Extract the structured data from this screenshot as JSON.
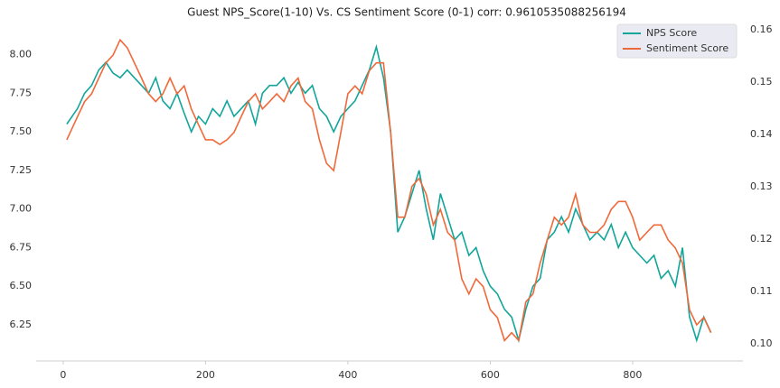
{
  "chart_data": {
    "type": "line",
    "title": "Guest NPS_Score(1-10) Vs. CS Sentiment Score (0-1)  corr: 0.9610535088256194",
    "x": [
      5,
      20,
      30,
      40,
      50,
      60,
      70,
      80,
      90,
      100,
      110,
      120,
      130,
      140,
      150,
      160,
      170,
      180,
      190,
      200,
      210,
      220,
      230,
      240,
      250,
      260,
      270,
      280,
      290,
      300,
      310,
      320,
      330,
      340,
      350,
      360,
      370,
      380,
      390,
      400,
      410,
      420,
      430,
      440,
      450,
      460,
      470,
      480,
      490,
      500,
      510,
      520,
      530,
      540,
      550,
      560,
      570,
      580,
      590,
      600,
      610,
      620,
      630,
      640,
      650,
      660,
      670,
      680,
      690,
      700,
      710,
      720,
      730,
      740,
      750,
      760,
      770,
      780,
      790,
      800,
      810,
      820,
      830,
      840,
      850,
      860,
      870,
      880,
      890,
      900,
      910
    ],
    "series": [
      {
        "name": "NPS Score",
        "color": "#12a59b",
        "axis": "y",
        "values": [
          7.55,
          7.65,
          7.75,
          7.8,
          7.9,
          7.95,
          7.88,
          7.85,
          7.9,
          7.85,
          7.8,
          7.75,
          7.85,
          7.7,
          7.65,
          7.75,
          7.62,
          7.5,
          7.6,
          7.55,
          7.65,
          7.6,
          7.7,
          7.6,
          7.65,
          7.7,
          7.55,
          7.75,
          7.8,
          7.8,
          7.85,
          7.75,
          7.82,
          7.75,
          7.8,
          7.65,
          7.6,
          7.5,
          7.6,
          7.65,
          7.7,
          7.8,
          7.9,
          8.05,
          7.85,
          7.5,
          6.85,
          6.95,
          7.1,
          7.25,
          7.0,
          6.8,
          7.1,
          6.95,
          6.8,
          6.85,
          6.7,
          6.75,
          6.6,
          6.5,
          6.45,
          6.35,
          6.3,
          6.15,
          6.35,
          6.5,
          6.55,
          6.8,
          6.85,
          6.95,
          6.85,
          7.0,
          6.9,
          6.8,
          6.85,
          6.8,
          6.9,
          6.75,
          6.85,
          6.75,
          6.7,
          6.65,
          6.7,
          6.55,
          6.6,
          6.5,
          6.75,
          6.3,
          6.15,
          6.3,
          6.2
        ]
      },
      {
        "name": "Sentiment Score",
        "color": "#f0693a",
        "axis": "y2",
        "values": [
          0.139,
          0.1434,
          0.1463,
          0.1478,
          0.1508,
          0.1537,
          0.1552,
          0.1581,
          0.1566,
          0.1537,
          0.1508,
          0.1478,
          0.1463,
          0.1478,
          0.1508,
          0.1478,
          0.1493,
          0.1449,
          0.1419,
          0.139,
          0.139,
          0.1381,
          0.139,
          0.1404,
          0.1434,
          0.1463,
          0.1478,
          0.1449,
          0.1463,
          0.1478,
          0.1463,
          0.1493,
          0.1508,
          0.1463,
          0.1449,
          0.139,
          0.1345,
          0.1331,
          0.1404,
          0.1478,
          0.1493,
          0.1478,
          0.1522,
          0.1537,
          0.1537,
          0.1404,
          0.1242,
          0.1242,
          0.1301,
          0.1316,
          0.1286,
          0.1227,
          0.1257,
          0.1213,
          0.1198,
          0.1124,
          0.1095,
          0.1124,
          0.1109,
          0.1065,
          0.105,
          0.1006,
          0.1021,
          0.1006,
          0.108,
          0.1095,
          0.1154,
          0.1198,
          0.1242,
          0.1227,
          0.1242,
          0.1286,
          0.1227,
          0.1213,
          0.1213,
          0.1227,
          0.1257,
          0.1272,
          0.1272,
          0.1242,
          0.1198,
          0.1213,
          0.1227,
          0.1227,
          0.1198,
          0.1183,
          0.1154,
          0.1065,
          0.1036,
          0.105,
          0.1021
        ]
      }
    ],
    "xlim": [
      -38,
      955
    ],
    "xticks": [
      0,
      200,
      400,
      600,
      800
    ],
    "ylim": [
      6.016,
      8.19
    ],
    "yticks": [
      {
        "value": 6.25,
        "label": "6.25"
      },
      {
        "value": 6.5,
        "label": "6.50"
      },
      {
        "value": 6.75,
        "label": "6.75"
      },
      {
        "value": 7.0,
        "label": "7.00"
      },
      {
        "value": 7.25,
        "label": "7.25"
      },
      {
        "value": 7.5,
        "label": "7.50"
      },
      {
        "value": 7.75,
        "label": "7.75"
      },
      {
        "value": 8.0,
        "label": "8.00"
      }
    ],
    "y2lim": [
      0.0967,
      0.1609
    ],
    "y2ticks": [
      {
        "value": 0.1,
        "label": "0.10"
      },
      {
        "value": 0.11,
        "label": "0.11"
      },
      {
        "value": 0.12,
        "label": "0.12"
      },
      {
        "value": 0.13,
        "label": "0.13"
      },
      {
        "value": 0.14,
        "label": "0.14"
      },
      {
        "value": 0.15,
        "label": "0.15"
      },
      {
        "value": 0.16,
        "label": "0.16"
      }
    ],
    "legend": "upper right"
  }
}
